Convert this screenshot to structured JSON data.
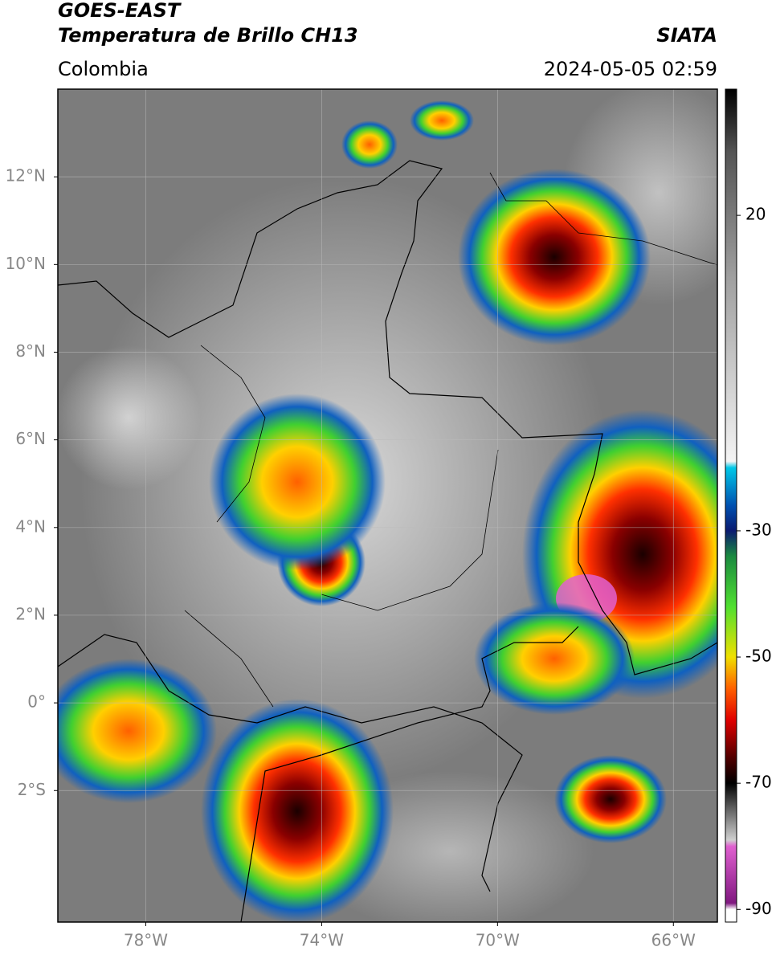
{
  "header": {
    "title": "GOES-EAST",
    "subtitle": "Temperatura de Brillo CH13",
    "source": "SIATA",
    "region": "Colombia",
    "timestamp": "2024-05-05 02:59"
  },
  "map": {
    "xlim": [
      -80,
      -65
    ],
    "ylim": [
      -5,
      14
    ],
    "grid": true,
    "xticks": [
      {
        "value": -78,
        "label": "78°W"
      },
      {
        "value": -74,
        "label": "74°W"
      },
      {
        "value": -70,
        "label": "70°W"
      },
      {
        "value": -66,
        "label": "66°W"
      }
    ],
    "yticks": [
      {
        "value": 12,
        "label": "12°N"
      },
      {
        "value": 10,
        "label": "10°N"
      },
      {
        "value": 8,
        "label": "8°N"
      },
      {
        "value": 6,
        "label": "6°N"
      },
      {
        "value": 4,
        "label": "4°N"
      },
      {
        "value": 2,
        "label": "2°N"
      },
      {
        "value": 0,
        "label": "0°"
      },
      {
        "value": -2,
        "label": "2°S"
      }
    ]
  },
  "colorbar": {
    "lim": [
      -92,
      40
    ],
    "ticks": [
      20,
      -30,
      -50,
      -70,
      -90
    ],
    "stops": [
      {
        "value": 40,
        "color": "#000000"
      },
      {
        "value": 30,
        "color": "#555555"
      },
      {
        "value": 10,
        "color": "#a0a0a0"
      },
      {
        "value": -19,
        "color": "#f4f4f4"
      },
      {
        "value": -20,
        "color": "#00c8e8"
      },
      {
        "value": -26,
        "color": "#0050b0"
      },
      {
        "value": -30,
        "color": "#0a1a70"
      },
      {
        "value": -34,
        "color": "#1a8a40"
      },
      {
        "value": -42,
        "color": "#50e030"
      },
      {
        "value": -50,
        "color": "#f0e000"
      },
      {
        "value": -55,
        "color": "#ff6000"
      },
      {
        "value": -60,
        "color": "#e00000"
      },
      {
        "value": -66,
        "color": "#500000"
      },
      {
        "value": -70,
        "color": "#000000"
      },
      {
        "value": -74,
        "color": "#606060"
      },
      {
        "value": -79,
        "color": "#d0d0d0"
      },
      {
        "value": -80,
        "color": "#e060d0"
      },
      {
        "value": -89,
        "color": "#801880"
      },
      {
        "value": -90,
        "color": "#ffffff"
      }
    ]
  }
}
